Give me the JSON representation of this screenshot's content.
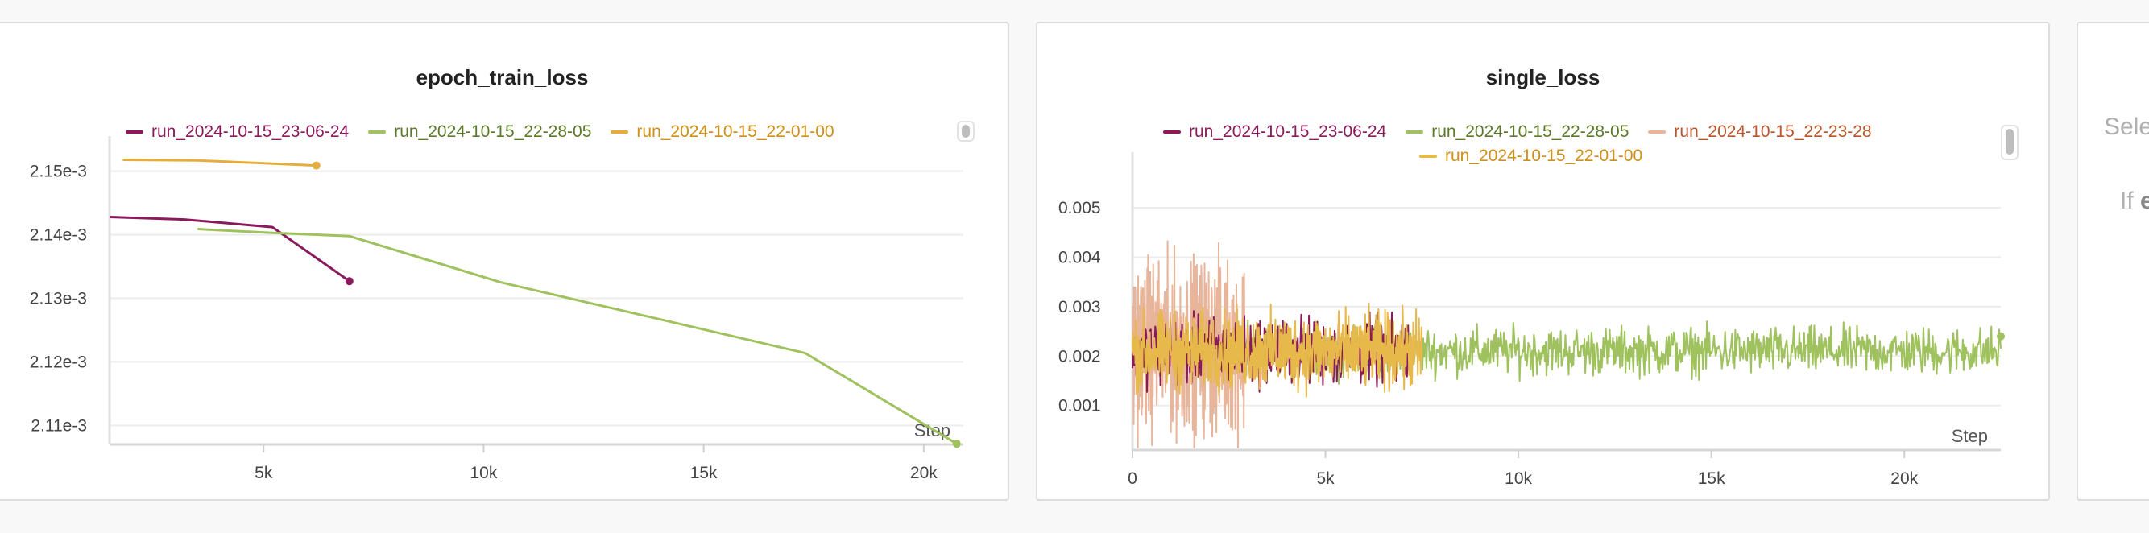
{
  "panels": {
    "right": {
      "line1": "Sele",
      "line2_prefix": "If ",
      "line2_bold": "e"
    }
  },
  "chart_data": [
    {
      "type": "line",
      "title": "epoch_train_loss",
      "xlabel": "Step",
      "ylabel": "",
      "xlim": [
        1500,
        20900
      ],
      "ylim": [
        0.002107,
        0.002153
      ],
      "x_ticks": [
        5000,
        10000,
        15000,
        20000
      ],
      "x_tick_labels": [
        "5k",
        "10k",
        "15k",
        "20k"
      ],
      "y_ticks": [
        0.00211,
        0.00212,
        0.00213,
        0.00214,
        0.00215
      ],
      "y_tick_labels": [
        "2.11e-3",
        "2.12e-3",
        "2.13e-3",
        "2.14e-3",
        "2.15e-3"
      ],
      "grid": true,
      "legend": "top",
      "series": [
        {
          "name": "run_2024-10-15_23-06-24",
          "color": "#8a1a5b",
          "x": [
            1500,
            3200,
            5200,
            6950
          ],
          "y": [
            0.0021428,
            0.0021424,
            0.0021412,
            0.0021327
          ]
        },
        {
          "name": "run_2024-10-15_22-28-05",
          "color": "#9fc25e",
          "x": [
            3500,
            5200,
            6950,
            10400,
            17300,
            20750
          ],
          "y": [
            0.0021409,
            0.0021403,
            0.0021398,
            0.0021325,
            0.0021214,
            0.0021071
          ]
        },
        {
          "name": "run_2024-10-15_22-01-00",
          "color": "#e6ad3c",
          "x": [
            1800,
            3500,
            6200
          ],
          "y": [
            0.0021518,
            0.0021517,
            0.0021509
          ]
        }
      ]
    },
    {
      "type": "line",
      "title": "single_loss",
      "xlabel": "Step",
      "ylabel": "",
      "xlim": [
        0,
        22500
      ],
      "ylim": [
        0.0001,
        0.0058
      ],
      "x_ticks": [
        0,
        5000,
        10000,
        15000,
        20000
      ],
      "x_tick_labels": [
        "0",
        "5k",
        "10k",
        "15k",
        "20k"
      ],
      "y_ticks": [
        0.001,
        0.002,
        0.003,
        0.004,
        0.005
      ],
      "y_tick_labels": [
        "0.001",
        "0.002",
        "0.003",
        "0.004",
        "0.005"
      ],
      "grid": true,
      "legend": "top",
      "series": [
        {
          "name": "run_2024-10-15_23-06-24",
          "color": "#8a1a5b",
          "x_range": [
            0,
            7200
          ],
          "mean": 0.0021,
          "spread": 0.0007,
          "samples": 500
        },
        {
          "name": "run_2024-10-15_22-28-05",
          "color": "#9fc25e",
          "x_range": [
            0,
            22500
          ],
          "mean": 0.0021,
          "spread": 0.0005,
          "samples": 1100
        },
        {
          "name": "run_2024-10-15_22-23-28",
          "color": "#e8b49a",
          "x_range": [
            0,
            2900
          ],
          "mean": 0.0022,
          "spread": 0.0018,
          "samples": 380
        },
        {
          "name": "run_2024-10-15_22-01-00",
          "color": "#e6b94a",
          "x_range": [
            0,
            7500
          ],
          "mean": 0.0021,
          "spread": 0.0008,
          "samples": 700
        }
      ]
    }
  ]
}
